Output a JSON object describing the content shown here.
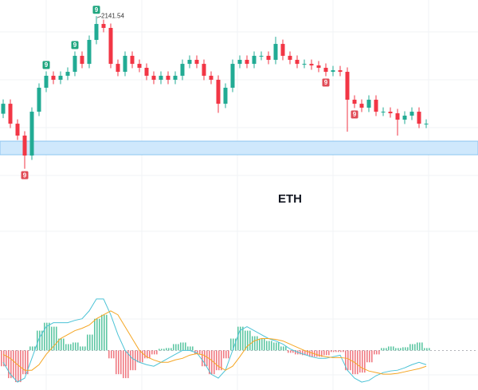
{
  "chart_data": {
    "type": "candlestick",
    "title": "ETH",
    "up_color": "#22ab94",
    "down_color": "#f23645",
    "ylim": [
      1850,
      2160
    ],
    "open": [
      2030.0,
      2041.4,
      2018.6,
      2005.0,
      1982.2,
      2032.3,
      2059.7,
      2073.4,
      2068.8,
      2073.4,
      2077.9,
      2096.2,
      2087.0,
      2114.4,
      2132.6,
      2128.1,
      2087.0,
      2077.9,
      2096.2,
      2087.0,
      2082.5,
      2073.4,
      2068.8,
      2073.4,
      2068.8,
      2073.4,
      2087.0,
      2091.6,
      2087.0,
      2073.4,
      2068.8,
      2041.4,
      2059.7,
      2087.0,
      2091.6,
      2087.0,
      2096.2,
      2096.2,
      2091.6,
      2109.8,
      2096.2,
      2091.6,
      2087.0,
      2087.0,
      2085.2,
      2082.5,
      2077.9,
      2079.7,
      2077.9,
      2046.0,
      2041.4,
      2036.9,
      2046.0,
      2032.3,
      2032.3,
      2030.5,
      2023.2,
      2027.8,
      2032.3,
      2018.6
    ],
    "high": [
      2046.4,
      2046.4,
      2023.6,
      2010.0,
      2037.3,
      2064.7,
      2078.4,
      2078.4,
      2078.4,
      2082.9,
      2101.2,
      2101.2,
      2119.4,
      2141.54,
      2137.6,
      2133.1,
      2092.0,
      2101.2,
      2101.2,
      2092.0,
      2087.5,
      2078.4,
      2078.4,
      2078.4,
      2078.4,
      2092.0,
      2096.6,
      2096.6,
      2092.0,
      2078.4,
      2073.8,
      2064.7,
      2092.0,
      2096.6,
      2096.6,
      2101.2,
      2101.2,
      2101.2,
      2118.0,
      2114.8,
      2101.2,
      2096.6,
      2092.0,
      2092.0,
      2090.2,
      2087.5,
      2084.7,
      2084.7,
      2082.9,
      2051.0,
      2046.4,
      2051.0,
      2051.0,
      2037.3,
      2037.3,
      2035.5,
      2032.8,
      2037.3,
      2037.3,
      2023.6
    ],
    "low": [
      2025.0,
      2013.6,
      2000.0,
      1967.0,
      1977.2,
      2027.3,
      2054.7,
      2063.8,
      2063.8,
      2068.4,
      2072.9,
      2082.0,
      2082.0,
      2109.4,
      2123.1,
      2082.0,
      2072.9,
      2072.9,
      2082.0,
      2077.5,
      2068.4,
      2063.8,
      2063.8,
      2063.8,
      2063.8,
      2068.4,
      2082.0,
      2082.0,
      2068.4,
      2063.8,
      2031.0,
      2036.4,
      2054.7,
      2082.0,
      2082.0,
      2082.0,
      2091.2,
      2086.6,
      2086.6,
      2091.2,
      2086.6,
      2082.0,
      2082.0,
      2080.2,
      2077.5,
      2072.9,
      2072.9,
      2072.9,
      2009.5,
      2036.4,
      2031.9,
      2031.9,
      2027.3,
      2027.3,
      2025.5,
      2005.0,
      2018.2,
      2022.8,
      2013.6,
      2013.6
    ],
    "close": [
      2041.4,
      2018.6,
      2005.0,
      1982.2,
      2032.3,
      2059.7,
      2073.4,
      2068.8,
      2073.4,
      2077.9,
      2096.2,
      2087.0,
      2114.4,
      2132.6,
      2128.1,
      2087.0,
      2077.9,
      2096.2,
      2087.0,
      2082.5,
      2073.4,
      2068.8,
      2073.4,
      2068.8,
      2073.4,
      2087.0,
      2091.6,
      2087.0,
      2073.4,
      2068.8,
      2041.4,
      2059.7,
      2087.0,
      2091.6,
      2087.0,
      2096.2,
      2096.2,
      2091.6,
      2109.8,
      2096.2,
      2091.6,
      2087.0,
      2087.0,
      2085.2,
      2082.5,
      2077.9,
      2079.7,
      2077.9,
      2046.0,
      2041.4,
      2036.9,
      2046.0,
      2032.3,
      2032.3,
      2030.5,
      2023.2,
      2027.8,
      2032.3,
      2018.6,
      2018.6
    ],
    "high_label": {
      "value": 2141.54,
      "label": "2141.54"
    },
    "zone": {
      "range": [
        1983.1,
        1998.6
      ],
      "color": "#cfe8fc",
      "border": "#8cc5f0"
    },
    "markers": [
      {
        "index": 3,
        "label": "9",
        "color": "#e04b56"
      },
      {
        "index": 6,
        "label": "9",
        "color": "#1fa67f"
      },
      {
        "index": 10,
        "label": "9",
        "color": "#1fa67f"
      },
      {
        "index": 13,
        "label": "9",
        "color": "#1fa67f"
      },
      {
        "index": 45,
        "label": "9",
        "color": "#e04b56"
      },
      {
        "index": 49,
        "label": "9",
        "color": "#e04b56"
      }
    ],
    "indicator": {
      "type": "macd",
      "ylim": [
        -50,
        80
      ],
      "histogram": [
        -20,
        -35,
        -40,
        -30,
        5,
        25,
        35,
        30,
        15,
        8,
        10,
        5,
        20,
        40,
        45,
        -10,
        -30,
        -35,
        -25,
        -15,
        -10,
        -5,
        2,
        3,
        8,
        10,
        5,
        -5,
        -20,
        -30,
        -25,
        -10,
        15,
        30,
        25,
        18,
        15,
        12,
        10,
        5,
        -3,
        -5,
        -6,
        -8,
        -8,
        -6,
        -2,
        -2,
        -25,
        -30,
        -28,
        -15,
        -5,
        3,
        5,
        3,
        4,
        8,
        10,
        3
      ],
      "histogram_up_color": "#5fc7a4",
      "histogram_down_color": "#f07c84",
      "series": [
        {
          "color": "#4cc3d6",
          "values": [
            -15,
            -30,
            -40,
            -35,
            -10,
            15,
            30,
            35,
            35,
            35,
            38,
            40,
            50,
            65,
            65,
            45,
            20,
            0,
            -10,
            -15,
            -18,
            -20,
            -15,
            -10,
            -5,
            0,
            0,
            -3,
            -15,
            -30,
            -35,
            -25,
            0,
            25,
            30,
            25,
            20,
            15,
            12,
            8,
            2,
            -2,
            -5,
            -8,
            -10,
            -10,
            -8,
            -6,
            -25,
            -35,
            -40,
            -38,
            -32,
            -28,
            -26,
            -25,
            -22,
            -18,
            -15,
            -18
          ]
        },
        {
          "color": "#f5a623",
          "values": [
            -5,
            -10,
            -18,
            -25,
            -25,
            -18,
            -5,
            5,
            15,
            20,
            25,
            28,
            32,
            40,
            45,
            50,
            45,
            30,
            15,
            0,
            -8,
            -12,
            -15,
            -15,
            -12,
            -10,
            -6,
            -4,
            -6,
            -12,
            -20,
            -25,
            -20,
            -8,
            5,
            12,
            15,
            15,
            14,
            12,
            8,
            4,
            0,
            -3,
            -6,
            -8,
            -9,
            -9,
            -10,
            -15,
            -22,
            -26,
            -28,
            -30,
            -30,
            -29,
            -27,
            -25,
            -23,
            -20
          ]
        }
      ]
    }
  }
}
